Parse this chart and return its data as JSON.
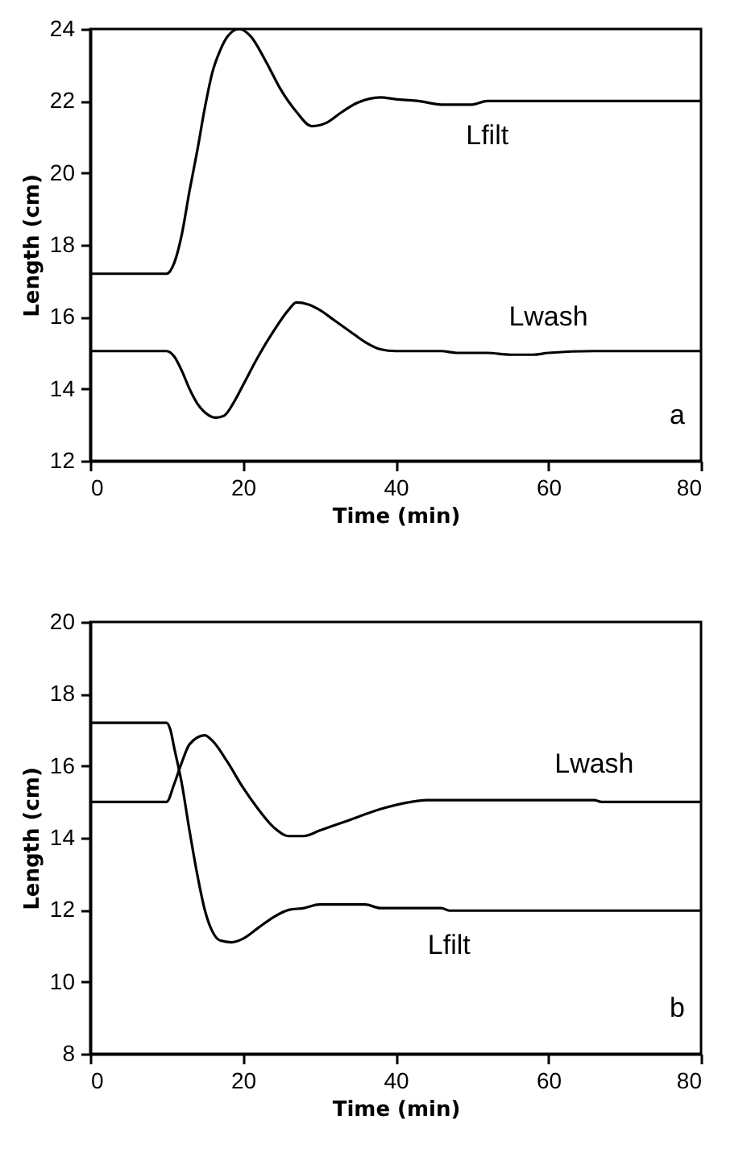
{
  "chart_data": [
    {
      "type": "line",
      "xlabel": "Time (min)",
      "ylabel": "Length (cm)",
      "xlim": [
        0,
        80
      ],
      "xticks": [
        0,
        20,
        40,
        60,
        80
      ],
      "ylim": [
        12,
        24
      ],
      "yticks": [
        12,
        14,
        16,
        18,
        20,
        22,
        24
      ],
      "annotations": [
        "a"
      ],
      "series": [
        {
          "name": "Lfilt",
          "color": "#000000",
          "x": [
            0,
            10,
            11,
            12,
            13,
            14,
            15,
            16,
            17,
            18,
            19.5,
            21,
            23,
            25,
            27,
            29,
            31,
            33,
            35,
            38,
            40,
            43,
            46,
            50,
            52,
            80
          ],
          "values": [
            17.2,
            17.2,
            17.5,
            18.3,
            19.5,
            20.6,
            21.8,
            22.8,
            23.4,
            23.8,
            24,
            23.8,
            23.1,
            22.3,
            21.7,
            21.3,
            21.4,
            21.7,
            21.95,
            22.1,
            22.05,
            22.0,
            21.9,
            21.9,
            22.0,
            22.0
          ]
        },
        {
          "name": "Lwash",
          "color": "#000000",
          "x": [
            0,
            10,
            11,
            12,
            13,
            14,
            15,
            16.5,
            17.5,
            19,
            20,
            22,
            24,
            26,
            27,
            28.5,
            30,
            32,
            34,
            36,
            38,
            40,
            46,
            48,
            52,
            55,
            58,
            60,
            66,
            80
          ],
          "values": [
            15.05,
            15.05,
            14.9,
            14.5,
            14.0,
            13.6,
            13.35,
            13.2,
            13.25,
            13.7,
            14.1,
            14.9,
            15.6,
            16.2,
            16.4,
            16.35,
            16.2,
            15.9,
            15.6,
            15.3,
            15.1,
            15.05,
            15.05,
            15.0,
            15.0,
            14.95,
            14.95,
            15.0,
            15.05,
            15.05
          ]
        }
      ]
    },
    {
      "type": "line",
      "xlabel": "Time (min)",
      "ylabel": "Length (cm)",
      "xlim": [
        0,
        80
      ],
      "xticks": [
        0,
        20,
        40,
        60,
        80
      ],
      "ylim": [
        8,
        20
      ],
      "yticks": [
        8,
        10,
        12,
        14,
        16,
        18,
        20
      ],
      "annotations": [
        "b"
      ],
      "series": [
        {
          "name": "Lfilt",
          "color": "#000000",
          "x": [
            0,
            10,
            10.5,
            11,
            12,
            13,
            14,
            15,
            16,
            17,
            18.5,
            20,
            22,
            24,
            26,
            28,
            30,
            36,
            38,
            46,
            47,
            80
          ],
          "values": [
            17.2,
            17.2,
            17.0,
            16.5,
            15.5,
            14.2,
            13.0,
            12.0,
            11.4,
            11.15,
            11.1,
            11.2,
            11.5,
            11.8,
            12.0,
            12.05,
            12.15,
            12.15,
            12.05,
            12.05,
            11.98,
            11.98
          ]
        },
        {
          "name": "Lwash",
          "color": "#000000",
          "x": [
            0,
            10,
            11,
            12,
            13,
            15,
            16,
            18,
            20,
            22,
            24,
            26,
            28,
            30,
            34,
            38,
            42,
            44,
            66,
            67,
            80
          ],
          "values": [
            15.0,
            15.0,
            15.5,
            16.1,
            16.6,
            16.85,
            16.7,
            16.1,
            15.4,
            14.8,
            14.3,
            14.05,
            14.05,
            14.2,
            14.5,
            14.8,
            15.0,
            15.05,
            15.05,
            15.0,
            15.0
          ]
        }
      ]
    }
  ]
}
